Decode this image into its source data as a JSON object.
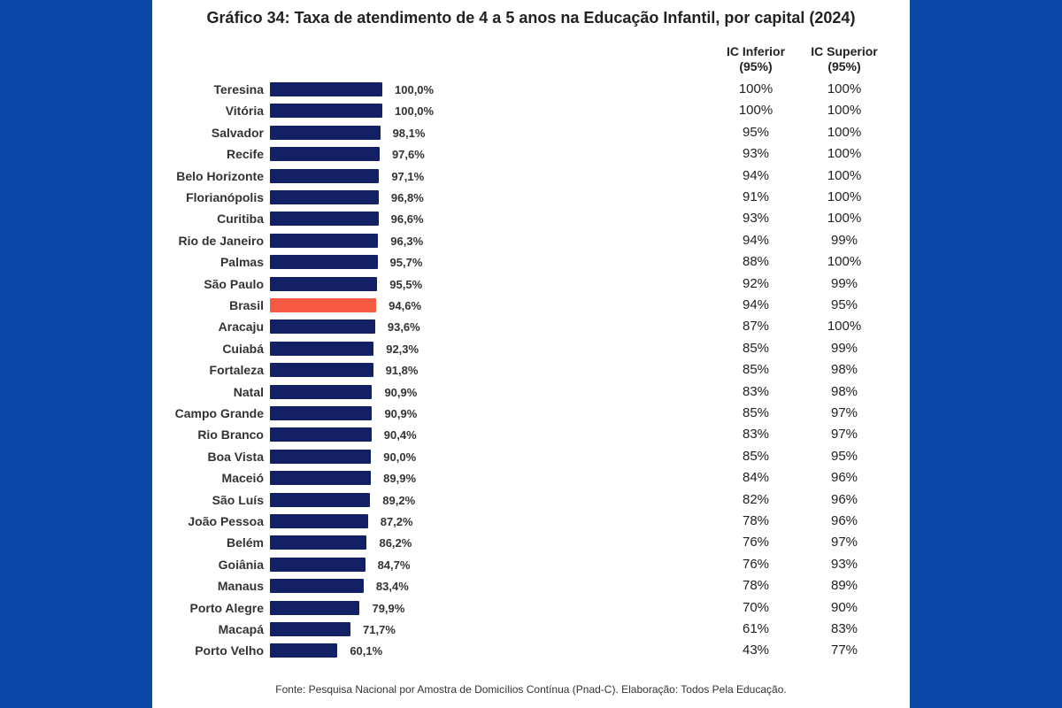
{
  "colors": {
    "background": "#0a47a6",
    "bar": "#132066",
    "highlight": "#f65a40"
  },
  "chart_data": {
    "type": "bar",
    "orientation": "horizontal",
    "title": "Gráfico 34: Taxa de atendimento de 4 a 5 anos na Educação Infantil, por capital (2024)",
    "xlim": [
      0,
      100
    ],
    "grid": false,
    "highlight_category": "Brasil",
    "categories": [
      "Teresina",
      "Vitória",
      "Salvador",
      "Recife",
      "Belo Horizonte",
      "Florianópolis",
      "Curitiba",
      "Rio de Janeiro",
      "Palmas",
      "São Paulo",
      "Brasil",
      "Aracaju",
      "Cuiabá",
      "Fortaleza",
      "Natal",
      "Campo Grande",
      "Rio Branco",
      "Boa Vista",
      "Maceió",
      "São Luís",
      "João Pessoa",
      "Belém",
      "Goiânia",
      "Manaus",
      "Porto Alegre",
      "Macapá",
      "Porto Velho"
    ],
    "values": [
      100.0,
      100.0,
      98.1,
      97.6,
      97.1,
      96.8,
      96.6,
      96.3,
      95.7,
      95.5,
      94.6,
      93.6,
      92.3,
      91.8,
      90.9,
      90.9,
      90.4,
      90.0,
      89.9,
      89.2,
      87.2,
      86.2,
      84.7,
      83.4,
      79.9,
      71.7,
      60.1
    ],
    "value_labels": [
      "100,0%",
      "100,0%",
      "98,1%",
      "97,6%",
      "97,1%",
      "96,8%",
      "96,6%",
      "96,3%",
      "95,7%",
      "95,5%",
      "94,6%",
      "93,6%",
      "92,3%",
      "91,8%",
      "90,9%",
      "90,9%",
      "90,4%",
      "90,0%",
      "89,9%",
      "89,2%",
      "87,2%",
      "86,2%",
      "84,7%",
      "83,4%",
      "79,9%",
      "71,7%",
      "60,1%"
    ],
    "table": {
      "columns": [
        {
          "header_line1": "IC Inferior",
          "header_line2": "(95%)"
        },
        {
          "header_line1": "IC Superior",
          "header_line2": "(95%)"
        }
      ],
      "ic_inferior": [
        "100%",
        "100%",
        "95%",
        "93%",
        "94%",
        "91%",
        "93%",
        "94%",
        "88%",
        "92%",
        "94%",
        "87%",
        "85%",
        "85%",
        "83%",
        "85%",
        "83%",
        "85%",
        "84%",
        "82%",
        "78%",
        "76%",
        "76%",
        "78%",
        "70%",
        "61%",
        "43%"
      ],
      "ic_superior": [
        "100%",
        "100%",
        "100%",
        "100%",
        "100%",
        "100%",
        "100%",
        "99%",
        "100%",
        "99%",
        "95%",
        "100%",
        "99%",
        "98%",
        "98%",
        "97%",
        "97%",
        "95%",
        "96%",
        "96%",
        "96%",
        "97%",
        "93%",
        "89%",
        "90%",
        "83%",
        "77%"
      ]
    },
    "source": "Fonte: Pesquisa Nacional por Amostra de Domicílios Contínua (Pnad-C). Elaboração: Todos Pela Educação."
  }
}
